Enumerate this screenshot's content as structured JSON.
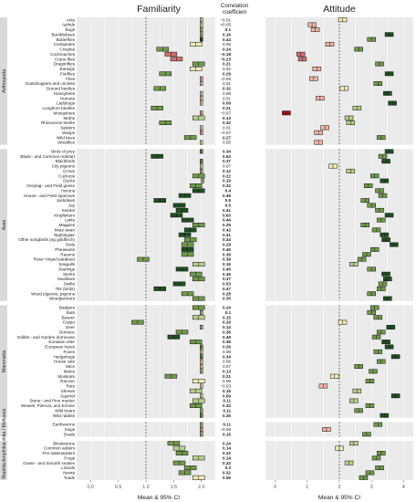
{
  "chart_data": {
    "type": "forest",
    "panels": [
      {
        "id": "familiarity",
        "title": "Familiarity",
        "xlim": [
          -0.25,
          2.25
        ],
        "ticks": [
          0.0,
          0.5,
          1.0,
          1.5,
          2.0
        ],
        "tick_labels": [
          "0.0",
          "0.5",
          "1.0",
          "1.5",
          "2.0"
        ],
        "ref_line": 1.0
      },
      {
        "id": "attitude",
        "title": "Attitude",
        "xlim": [
          -0.3,
          4.3
        ],
        "ticks": [
          0,
          1,
          2,
          3,
          4
        ],
        "tick_labels": [
          "0",
          "1",
          "2",
          "3",
          "4"
        ],
        "ref_line": 2.0
      }
    ],
    "corr_title": [
      "Correlation",
      "coefficien"
    ],
    "xlabel_left": "Mean & 95% CI",
    "xlabel_right": "Mean & 95% CI",
    "colors": {
      "strong_pos": "#1f4f1f",
      "pos": "#6f9a4a",
      "light_pos": "#b5cf8b",
      "neutral": "#f1ebb8",
      "light_neg": "#f2b4a4",
      "neg": "#d0706a",
      "strong_neg": "#a11414"
    },
    "groups": [
      {
        "name": "Arthropoda",
        "rows": [
          {
            "label": "Ants",
            "fam": 2.0,
            "att": 2.1,
            "corr": "−0.01",
            "bold": false
          },
          {
            "label": "Aphids",
            "fam": 2.0,
            "att": 1.15,
            "corr": "<0.05",
            "bold": false
          },
          {
            "label": "Bugs",
            "fam": 2.0,
            "att": 1.25,
            "corr": "0.1",
            "bold": true
          },
          {
            "label": "Bumblebees",
            "fam": 2.0,
            "att": 3.55,
            "corr": "0.16",
            "bold": true
          },
          {
            "label": "Butterflies",
            "fam": 2.0,
            "att": 3.0,
            "corr": "0.44",
            "bold": true
          },
          {
            "label": "Centipedes",
            "fam": 1.9,
            "att": 1.7,
            "corr": "0.06",
            "bold": false
          },
          {
            "label": "Cicadas",
            "fam": 1.3,
            "att": 2.6,
            "corr": "0.24",
            "bold": true
          },
          {
            "label": "Cockroaches",
            "fam": 1.45,
            "att": 0.8,
            "corr": "−0.18",
            "bold": true
          },
          {
            "label": "Crane flies",
            "fam": 1.55,
            "att": 0.85,
            "corr": "−0.23",
            "bold": true
          },
          {
            "label": "Dragonflies",
            "fam": 1.95,
            "att": 3.25,
            "corr": "0.21",
            "bold": true
          },
          {
            "label": "Earwigs",
            "fam": 1.9,
            "att": 1.3,
            "corr": "0.02",
            "bold": false
          },
          {
            "label": "Fireflies",
            "fam": 1.35,
            "att": 3.55,
            "corr": "0.29",
            "bold": true
          },
          {
            "label": "Flies",
            "fam": 2.0,
            "att": 1.2,
            "corr": "−0.05",
            "bold": false
          },
          {
            "label": "Grasshoppers and crickets",
            "fam": 2.0,
            "att": 3.2,
            "corr": "0.01",
            "bold": false
          },
          {
            "label": "Ground beetles",
            "fam": 1.25,
            "att": 2.15,
            "corr": "0.32",
            "bold": true
          },
          {
            "label": "Honeybees",
            "fam": 2.0,
            "att": 3.5,
            "corr": "0.08",
            "bold": false
          },
          {
            "label": "Hornets",
            "fam": 2.0,
            "att": 1.4,
            "corr": "0.01",
            "bold": false
          },
          {
            "label": "Ladybugs",
            "fam": 2.0,
            "att": 3.65,
            "corr": "0.09",
            "bold": true
          },
          {
            "label": "Longhorn beetles",
            "fam": 1.2,
            "att": 2.55,
            "corr": "0.21",
            "bold": true
          },
          {
            "label": "Mosquitoes",
            "fam": 2.0,
            "att": 0.35,
            "corr": "−0.07",
            "bold": false
          },
          {
            "label": "Moths",
            "fam": 1.95,
            "att": 2.3,
            "corr": "0.13",
            "bold": true
          },
          {
            "label": "Rhinoceros beetle",
            "fam": 1.35,
            "att": 2.35,
            "corr": "0.32",
            "bold": true
          },
          {
            "label": "Spiders",
            "fam": 2.0,
            "att": 1.55,
            "corr": "0.01",
            "bold": false
          },
          {
            "label": "Wasps",
            "fam": 2.0,
            "att": 1.35,
            "corr": "−0.07",
            "bold": false
          },
          {
            "label": "Wild bees",
            "fam": 1.8,
            "att": 3.3,
            "corr": "0.27",
            "bold": true
          },
          {
            "label": "Woodlice",
            "fam": 2.0,
            "att": 1.35,
            "corr": "0.05",
            "bold": false
          }
        ]
      },
      {
        "name": "Aves",
        "rows": [
          {
            "label": "Birds of prey",
            "fam": 2.0,
            "att": 3.55,
            "corr": "0.34",
            "bold": true
          },
          {
            "label": "Black− and Common redstart",
            "fam": 1.2,
            "att": 3.35,
            "corr": "0.62",
            "bold": true
          },
          {
            "label": "Blackbirds",
            "fam": 2.0,
            "att": 3.45,
            "corr": "0.37",
            "bold": true
          },
          {
            "label": "City pigeons",
            "fam": 2.0,
            "att": 1.8,
            "corr": "0.07",
            "bold": false
          },
          {
            "label": "Crows",
            "fam": 2.0,
            "att": 2.35,
            "corr": "0.12",
            "bold": true
          },
          {
            "label": "Cuckoos",
            "fam": 1.95,
            "att": 3.1,
            "corr": "0.22",
            "bold": true
          },
          {
            "label": "Ducks",
            "fam": 2.02,
            "att": 3.4,
            "corr": "0.19",
            "bold": true
          },
          {
            "label": "Greylag− and Field geese",
            "fam": 1.9,
            "att": 2.9,
            "corr": "0.32",
            "bold": true
          },
          {
            "label": "Herons",
            "fam": 1.95,
            "att": 3.25,
            "corr": "0.4",
            "bold": true
          },
          {
            "label": "House− and Field sparrows",
            "fam": 1.7,
            "att": 3.35,
            "corr": "0.49",
            "bold": true
          },
          {
            "label": "Jackdaws",
            "fam": 1.25,
            "att": 2.8,
            "corr": "0.5",
            "bold": true
          },
          {
            "label": "Jay",
            "fam": 1.6,
            "att": 3.0,
            "corr": "0.5",
            "bold": true
          },
          {
            "label": "Kestrel",
            "fam": 1.65,
            "att": 3.25,
            "corr": "0.41",
            "bold": true
          },
          {
            "label": "Kingfishers",
            "fam": 1.55,
            "att": 3.55,
            "corr": "0.63",
            "bold": true
          },
          {
            "label": "Larks",
            "fam": 1.75,
            "att": 3.3,
            "corr": "0.44",
            "bold": true
          },
          {
            "label": "Magpies",
            "fam": 1.95,
            "att": 2.8,
            "corr": "0.29",
            "bold": true
          },
          {
            "label": "Mute swan",
            "fam": 1.8,
            "att": 3.15,
            "corr": "0.42",
            "bold": true
          },
          {
            "label": "Nightingale",
            "fam": 1.7,
            "att": 3.4,
            "corr": "0.41",
            "bold": true
          },
          {
            "label": "Other songbirds (eg goldfinch)",
            "fam": 1.8,
            "att": 3.45,
            "corr": "0.34",
            "bold": true
          },
          {
            "label": "Owls",
            "fam": 1.75,
            "att": 3.7,
            "corr": "0.29",
            "bold": true
          },
          {
            "label": "Pheasants",
            "fam": 1.75,
            "att": 3.1,
            "corr": "0.45",
            "bold": true
          },
          {
            "label": "Ravens",
            "fam": 1.75,
            "att": 2.85,
            "corr": "0.38",
            "bold": true
          },
          {
            "label": "Rose−ringed parakeet",
            "fam": 0.95,
            "att": 2.7,
            "corr": "0.39",
            "bold": true
          },
          {
            "label": "Seagulls",
            "fam": 1.95,
            "att": 2.45,
            "corr": "0.15",
            "bold": true
          },
          {
            "label": "Starlings",
            "fam": 1.65,
            "att": 3.0,
            "corr": "0.45",
            "bold": true
          },
          {
            "label": "Storks",
            "fam": 1.9,
            "att": 3.45,
            "corr": "0.36",
            "bold": true
          },
          {
            "label": "Swallows",
            "fam": 1.95,
            "att": 3.5,
            "corr": "0.37",
            "bold": true
          },
          {
            "label": "Swifts",
            "fam": 1.6,
            "att": 3.35,
            "corr": "0.53",
            "bold": true
          },
          {
            "label": "Tits (birds)",
            "fam": 1.25,
            "att": 3.3,
            "corr": "0.47",
            "bold": true
          },
          {
            "label": "Wood pigeons, pigeons",
            "fam": 1.75,
            "att": 3.0,
            "corr": "0.28",
            "bold": true
          },
          {
            "label": "Woodpeckers",
            "fam": 1.95,
            "att": 3.5,
            "corr": "0.35",
            "bold": true
          }
        ]
      },
      {
        "name": "Mammalia",
        "rows": [
          {
            "label": "Badgers",
            "fam": 1.95,
            "att": 3.1,
            "corr": "0.24",
            "bold": true
          },
          {
            "label": "Bats",
            "fam": 2.0,
            "att": 3.0,
            "corr": "0.1",
            "bold": true
          },
          {
            "label": "Beaver",
            "fam": 1.95,
            "att": 3.2,
            "corr": "0.15",
            "bold": true
          },
          {
            "label": "Coypu",
            "fam": 0.85,
            "att": 2.1,
            "corr": "0.29",
            "bold": true
          },
          {
            "label": "Deer",
            "fam": 2.0,
            "att": 3.6,
            "corr": "0.14",
            "bold": true
          },
          {
            "label": "Dormice",
            "fam": 1.65,
            "att": 3.3,
            "corr": "0.38",
            "bold": true
          },
          {
            "label": "Edible− and Garden dormouse",
            "fam": 1.5,
            "att": 3.15,
            "corr": "0.49",
            "bold": true
          },
          {
            "label": "Eurasian otter",
            "fam": 1.9,
            "att": 3.45,
            "corr": "0.35",
            "bold": true
          },
          {
            "label": "European hares",
            "fam": 2.0,
            "att": 3.55,
            "corr": "0.26",
            "bold": true
          },
          {
            "label": "Foxes",
            "fam": 2.0,
            "att": 3.2,
            "corr": "0.08",
            "bold": false
          },
          {
            "label": "Hedgehogs",
            "fam": 2.0,
            "att": 3.75,
            "corr": "0.34",
            "bold": true
          },
          {
            "label": "House cats",
            "fam": 2.0,
            "att": 3.3,
            "corr": "0.08",
            "bold": false
          },
          {
            "label": "Mice",
            "fam": 2.0,
            "att": 2.6,
            "corr": "0.07",
            "bold": false
          },
          {
            "label": "Moles",
            "fam": 2.0,
            "att": 3.05,
            "corr": "0.13",
            "bold": true
          },
          {
            "label": "Muskrats",
            "fam": 1.45,
            "att": 1.85,
            "corr": "0.21",
            "bold": true
          },
          {
            "label": "Racoon",
            "fam": 1.95,
            "att": 2.95,
            "corr": "0.08",
            "bold": false
          },
          {
            "label": "Rats",
            "fam": 2.0,
            "att": 1.5,
            "corr": "−0.03",
            "bold": false
          },
          {
            "label": "Shrews",
            "fam": 1.9,
            "att": 2.55,
            "corr": "0.15",
            "bold": true
          },
          {
            "label": "Squirrel",
            "fam": 2.0,
            "att": 3.75,
            "corr": "0.09",
            "bold": true
          },
          {
            "label": "Stone− and Pine marten",
            "fam": 1.95,
            "att": 2.45,
            "corr": "0.11",
            "bold": true
          },
          {
            "label": "Weasel, Polecat, and Ermine",
            "fam": 1.9,
            "att": 2.95,
            "corr": "0.32",
            "bold": true
          },
          {
            "label": "Wild boars",
            "fam": 2.0,
            "att": 2.6,
            "corr": "0.11",
            "bold": true
          },
          {
            "label": "Wild rabbits",
            "fam": 2.0,
            "att": 3.4,
            "corr": "0.25",
            "bold": true
          }
        ]
      },
      {
        "name": "Annelida / Mollusca",
        "rows": [
          {
            "label": "Earthworms",
            "fam": 2.0,
            "att": 3.2,
            "corr": "0.11",
            "bold": true
          },
          {
            "label": "Slugs",
            "fam": 2.0,
            "att": 1.6,
            "corr": "−0.06",
            "bold": false
          },
          {
            "label": "Snails",
            "fam": 2.0,
            "att": 2.85,
            "corr": "0.15",
            "bold": true
          }
        ]
      },
      {
        "name": "Reptilia Amphibia",
        "rows": [
          {
            "label": "Blindworms",
            "fam": 1.5,
            "att": 2.45,
            "corr": "0.24",
            "bold": true
          },
          {
            "label": "Common adders",
            "fam": 1.6,
            "att": 2.0,
            "corr": "0.14",
            "bold": true
          },
          {
            "label": "Fire salamanders",
            "fam": 1.65,
            "att": 3.3,
            "corr": "0.22",
            "bold": true
          },
          {
            "label": "Frogs",
            "fam": 1.95,
            "att": 3.15,
            "corr": "0.14",
            "bold": true
          },
          {
            "label": "Grass− and Smooth snakes",
            "fam": 1.6,
            "att": 2.3,
            "corr": "0.32",
            "bold": true
          },
          {
            "label": "Lizards",
            "fam": 1.8,
            "att": 3.25,
            "corr": "0.2",
            "bold": true
          },
          {
            "label": "Newts",
            "fam": 1.7,
            "att": 2.95,
            "corr": "0.32",
            "bold": true
          },
          {
            "label": "Toads",
            "fam": 1.95,
            "att": 2.75,
            "corr": "0.09",
            "bold": true
          }
        ]
      }
    ]
  }
}
